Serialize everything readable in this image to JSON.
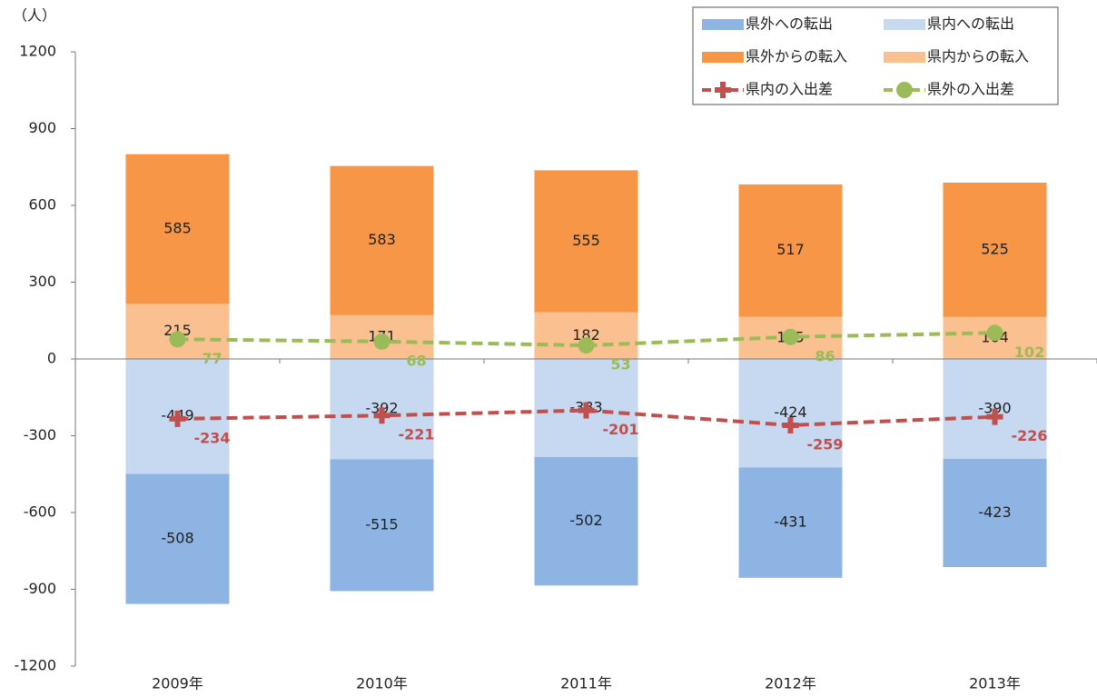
{
  "chart_data": {
    "type": "bar",
    "y_label": "（人）",
    "categories": [
      "2009年",
      "2010年",
      "2011年",
      "2012年",
      "2013年"
    ],
    "ylim": [
      -1200,
      1200
    ],
    "yticks": [
      -1200,
      -900,
      -600,
      -300,
      0,
      300,
      600,
      900,
      1200
    ],
    "series": [
      {
        "name": "県外への転出",
        "type": "bar",
        "color": "#8eb4e3",
        "values": [
          -508,
          -515,
          -502,
          -431,
          -423
        ]
      },
      {
        "name": "県内への転出",
        "type": "bar",
        "color": "#c6d9f1",
        "values": [
          -449,
          -392,
          -383,
          -424,
          -390
        ]
      },
      {
        "name": "県外からの転入",
        "type": "bar",
        "color": "#f79646",
        "values": [
          585,
          583,
          555,
          517,
          525
        ]
      },
      {
        "name": "県内からの転入",
        "type": "bar",
        "color": "#fac090",
        "values": [
          215,
          171,
          182,
          165,
          164
        ]
      },
      {
        "name": "県内の入出差",
        "type": "line",
        "marker": "plus",
        "color": "#c0504d",
        "values": [
          -234,
          -221,
          -201,
          -259,
          -226
        ]
      },
      {
        "name": "県外の入出差",
        "type": "line",
        "marker": "circle",
        "color": "#9bbb59",
        "values": [
          77,
          68,
          53,
          86,
          102
        ]
      }
    ]
  }
}
